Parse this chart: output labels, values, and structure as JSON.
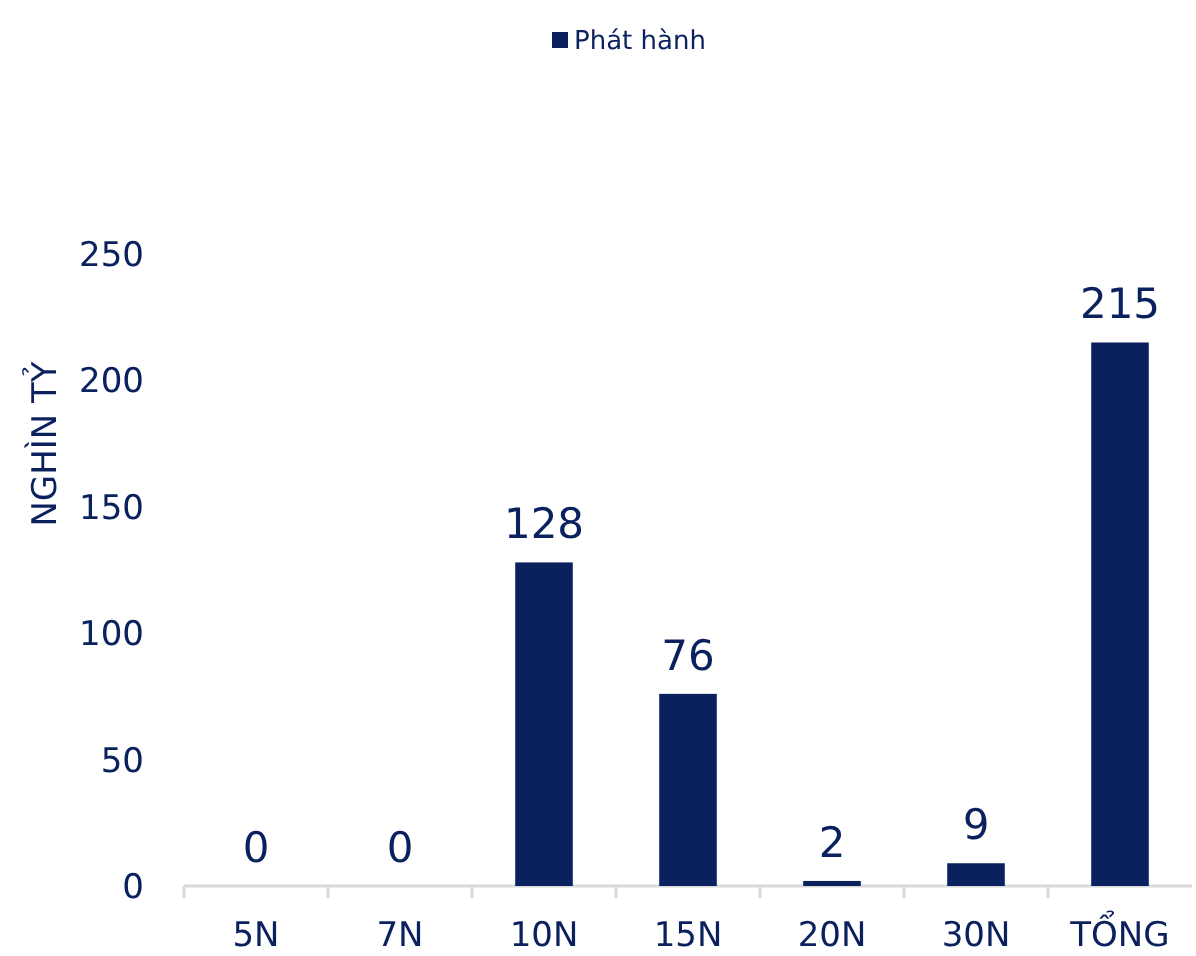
{
  "chart_data": {
    "type": "bar",
    "ylabel": "NGHÌN TỶ",
    "categories": [
      "5N",
      "7N",
      "10N",
      "15N",
      "20N",
      "30N",
      "TỔNG"
    ],
    "series": [
      {
        "name": "Phát hành",
        "color": "#0a215e",
        "values": [
          0,
          0,
          128,
          76,
          2,
          9,
          215
        ]
      }
    ],
    "ylim": [
      0,
      250
    ],
    "yticks": [
      0,
      50,
      100,
      150,
      200,
      250
    ],
    "data_labels": true,
    "legend": "top",
    "grid": false
  }
}
